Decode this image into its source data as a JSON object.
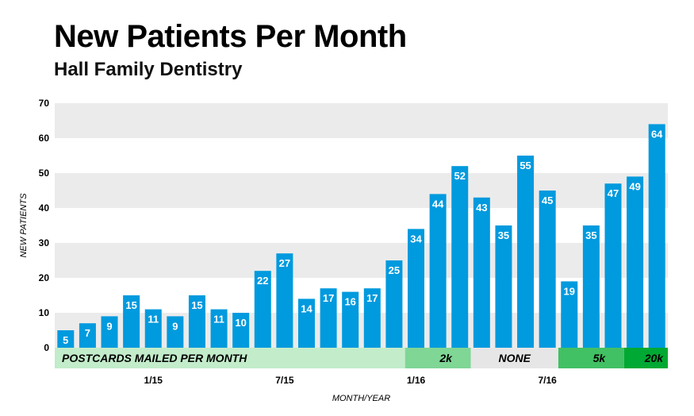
{
  "chart_data": {
    "type": "bar",
    "title": "New Patients Per Month",
    "subtitle": "Hall Family Dentistry",
    "xlabel": "MONTH/YEAR",
    "ylabel": "NEW PATIENTS",
    "ylim": [
      0,
      70
    ],
    "yticks": [
      0,
      10,
      20,
      30,
      40,
      50,
      60,
      70
    ],
    "grid": "alternating horizontal bands",
    "values": [
      5,
      7,
      9,
      15,
      11,
      9,
      15,
      11,
      10,
      22,
      27,
      14,
      17,
      16,
      17,
      25,
      34,
      44,
      52,
      43,
      35,
      55,
      45,
      19,
      35,
      47,
      49,
      64
    ],
    "xtick_labels": [
      {
        "index": 4,
        "label": "1/15"
      },
      {
        "index": 10,
        "label": "7/15"
      },
      {
        "index": 16,
        "label": "1/16"
      },
      {
        "index": 22,
        "label": "7/16"
      }
    ],
    "bar_color": "#009ade",
    "postcards_row": [
      {
        "label": "POSTCARDS MAILED PER MONTH",
        "start": 0,
        "end": 15,
        "color": "#c2ecca"
      },
      {
        "label": "2k",
        "start": 16,
        "end": 18,
        "color": "#7fd695"
      },
      {
        "label": "NONE",
        "start": 19,
        "end": 22,
        "color": "#e6e6e6"
      },
      {
        "label": "5k",
        "start": 23,
        "end": 25,
        "color": "#42c064"
      },
      {
        "label": "20k",
        "start": 26,
        "end": 27,
        "color": "#00a933"
      }
    ]
  }
}
